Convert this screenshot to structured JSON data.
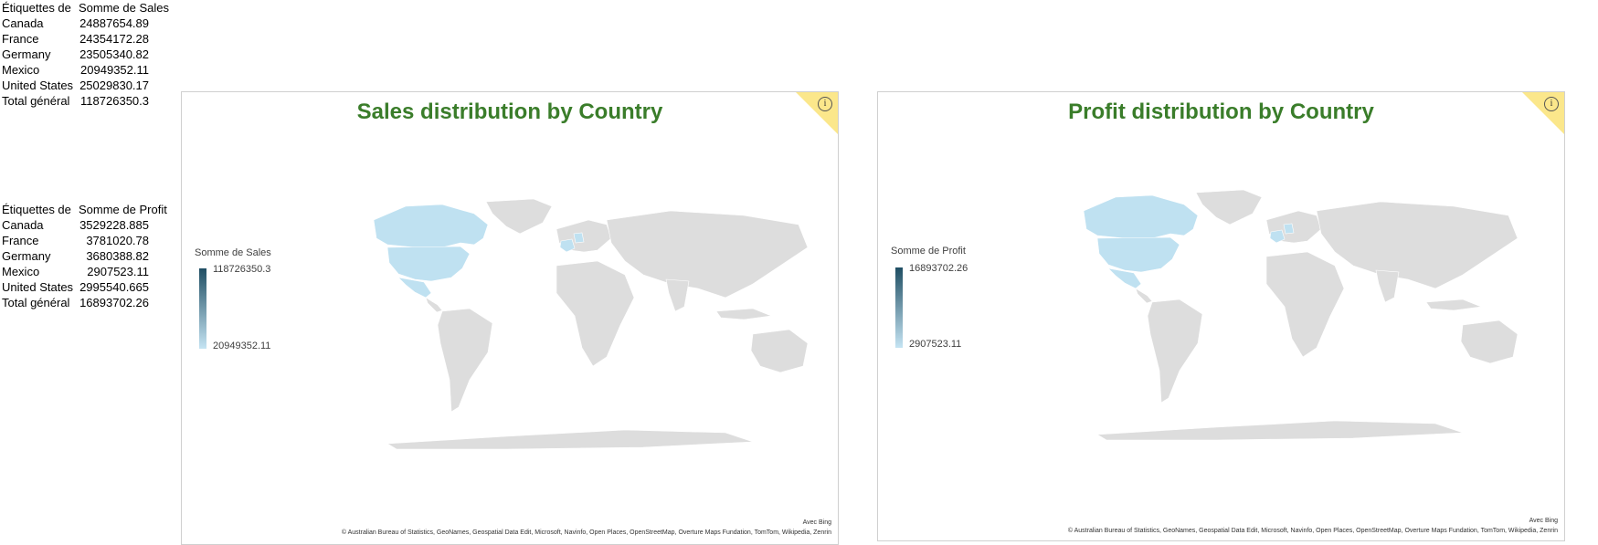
{
  "pivot_sales": {
    "header": [
      "Étiquettes de",
      "Somme de  Sales"
    ],
    "rows": [
      {
        "label": "Canada",
        "value": "24887654.89"
      },
      {
        "label": "France",
        "value": "24354172.28"
      },
      {
        "label": "Germany",
        "value": "23505340.82"
      },
      {
        "label": "Mexico",
        "value": "20949352.11"
      },
      {
        "label": "United States",
        "value": "25029830.17"
      },
      {
        "label": "Total général",
        "value": "118726350.3"
      }
    ]
  },
  "pivot_profit": {
    "header": [
      "Étiquettes de",
      "Somme de Profit"
    ],
    "rows": [
      {
        "label": "Canada",
        "value": "3529228.885"
      },
      {
        "label": "France",
        "value": "3781020.78"
      },
      {
        "label": "Germany",
        "value": "3680388.82"
      },
      {
        "label": "Mexico",
        "value": "2907523.11"
      },
      {
        "label": "United States",
        "value": "2995540.665"
      },
      {
        "label": "Total général",
        "value": "16893702.26"
      }
    ]
  },
  "charts": [
    {
      "title": "Sales distribution by Country",
      "legend_title": "Somme de  Sales",
      "legend_max": "118726350.3",
      "legend_min": "20949352.11",
      "bing": "Avec Bing",
      "attribution": "© Australian Bureau of Statistics, GeoNames, Geospatial Data Edit, Microsoft, Navinfo, Open Places, OpenStreetMap, Overture Maps Fundation, TomTom, Wikipedia, Zenrin"
    },
    {
      "title": "Profit distribution by Country",
      "legend_title": "Somme de Profit",
      "legend_max": "16893702.26",
      "legend_min": "2907523.11",
      "bing": "Avec Bing",
      "attribution": "© Australian Bureau of Statistics, GeoNames, Geospatial Data Edit, Microsoft, Navinfo, Open Places, OpenStreetMap, Overture Maps Fundation, TomTom, Wikipedia, Zenrin"
    }
  ],
  "colors": {
    "title": "#3a7d2a",
    "land": "#dddddd",
    "highlight": "#bfe1f1",
    "legend_top": "#1f4e63",
    "legend_bottom": "#c5e4f3",
    "info_corner": "#fbe78b"
  },
  "icons": {
    "info": "info-icon"
  }
}
